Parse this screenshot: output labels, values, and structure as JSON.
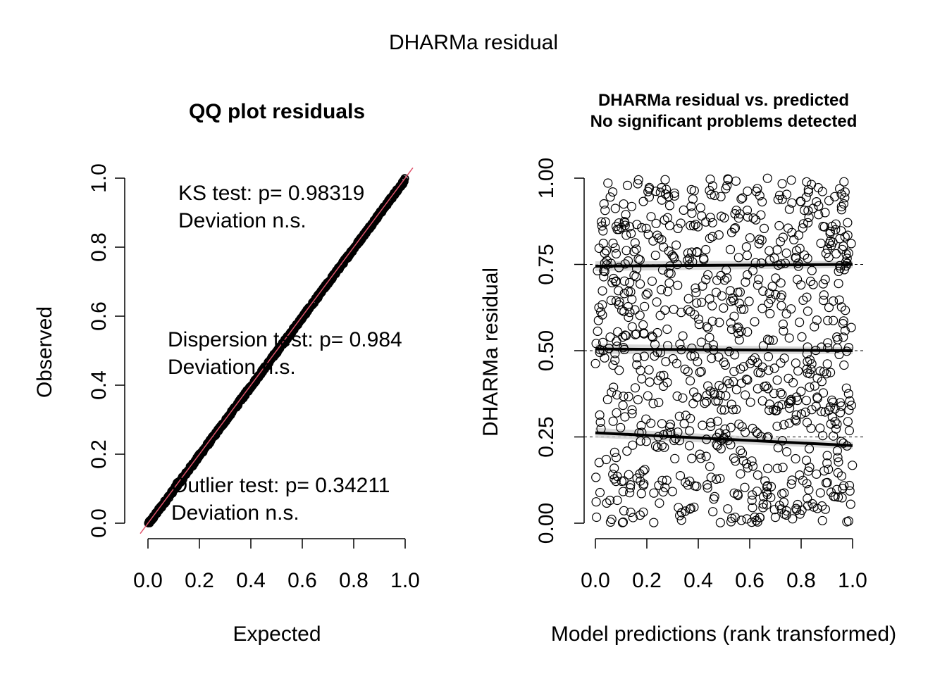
{
  "figure_title": "DHARMa residual",
  "chart_data": [
    {
      "type": "scatter",
      "title": "QQ plot residuals",
      "xlabel": "Expected",
      "ylabel": "Observed",
      "xlim": [
        0,
        1
      ],
      "ylim": [
        0,
        1
      ],
      "xticks": [
        "0.0",
        "0.2",
        "0.4",
        "0.6",
        "0.8",
        "1.0"
      ],
      "yticks": [
        "0.0",
        "0.2",
        "0.4",
        "0.6",
        "0.8",
        "1.0"
      ],
      "reference_line": {
        "from": [
          0,
          0
        ],
        "to": [
          1,
          1
        ],
        "color": "#DF536B"
      },
      "points_color": "#000000",
      "annotations": [
        {
          "line1": "KS test: p= 0.98319",
          "line2": "Deviation  n.s."
        },
        {
          "line1": "Dispersion test: p= 0.984",
          "line2": "Deviation  n.s."
        },
        {
          "line1": "Outlier test: p= 0.34211",
          "line2": "Deviation  n.s."
        }
      ]
    },
    {
      "type": "scatter",
      "title": "DHARMa residual vs. predicted",
      "subtitle": "No significant problems detected",
      "xlabel": "Model predictions (rank transformed)",
      "ylabel": "DHARMa residual",
      "xlim": [
        0,
        1
      ],
      "ylim": [
        0,
        1
      ],
      "xticks": [
        "0.0",
        "0.2",
        "0.4",
        "0.6",
        "0.8",
        "1.0"
      ],
      "yticks": [
        "0.00",
        "0.25",
        "0.50",
        "0.75",
        "1.00"
      ],
      "reference_lines_y": [
        0.25,
        0.5,
        0.75
      ],
      "quantile_fits": [
        {
          "quantile": 0.25,
          "start": 0.262,
          "end": 0.225
        },
        {
          "quantile": 0.5,
          "start": 0.505,
          "end": 0.5
        },
        {
          "quantile": 0.75,
          "start": 0.745,
          "end": 0.75
        }
      ],
      "n_points": 900
    }
  ]
}
